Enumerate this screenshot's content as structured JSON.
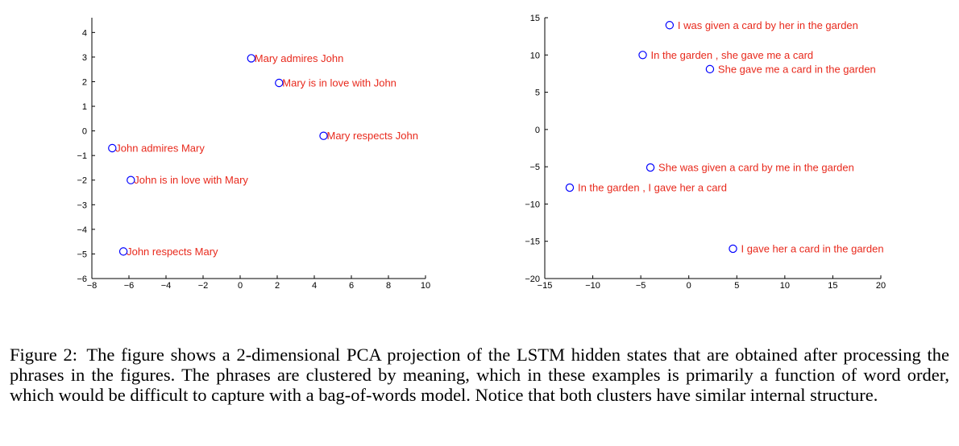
{
  "chart_data": [
    {
      "type": "scatter",
      "title": "",
      "xlabel": "",
      "ylabel": "",
      "xlim": [
        -8,
        10
      ],
      "ylim": [
        -6,
        4.6
      ],
      "xticks": [
        -8,
        -6,
        -4,
        -2,
        0,
        2,
        4,
        6,
        8,
        10
      ],
      "yticks": [
        4,
        3,
        2,
        1,
        0,
        -1,
        -2,
        -3,
        -4,
        -5,
        -6
      ],
      "marker_color": "#0000ff",
      "label_color": "#e8291c",
      "points": [
        {
          "x": 0.6,
          "y": 2.95,
          "label": "Mary admires John"
        },
        {
          "x": 2.1,
          "y": 1.95,
          "label": "Mary is in love with John"
        },
        {
          "x": 4.5,
          "y": -0.2,
          "label": "Mary respects John"
        },
        {
          "x": -6.9,
          "y": -0.7,
          "label": "John admires Mary"
        },
        {
          "x": -5.9,
          "y": -2.0,
          "label": "John is in love with Mary"
        },
        {
          "x": -6.3,
          "y": -4.9,
          "label": "John respects Mary"
        }
      ]
    },
    {
      "type": "scatter",
      "title": "",
      "xlabel": "",
      "ylabel": "",
      "xlim": [
        -15,
        20
      ],
      "ylim": [
        -20,
        15
      ],
      "xticks": [
        -15,
        -10,
        -5,
        0,
        5,
        10,
        15,
        20
      ],
      "yticks": [
        15,
        10,
        5,
        0,
        -5,
        -10,
        -15,
        -20
      ],
      "marker_color": "#0000ff",
      "label_color": "#e8291c",
      "points": [
        {
          "x": -2,
          "y": 14,
          "label": "I was given a card by her in the garden"
        },
        {
          "x": -4.8,
          "y": 10,
          "label": "In the garden , she gave me a card"
        },
        {
          "x": 2.2,
          "y": 8.1,
          "label": "She gave me a card in the garden"
        },
        {
          "x": -4,
          "y": -5.1,
          "label": "She was given a card by me in the garden"
        },
        {
          "x": -12.4,
          "y": -7.8,
          "label": "In the garden , I gave her a card"
        },
        {
          "x": 4.6,
          "y": -16,
          "label": "I gave her a card in the garden"
        }
      ]
    }
  ],
  "caption": {
    "figure_number": "Figure 2:",
    "text": "The figure shows a 2-dimensional PCA projection of the LSTM hidden states that are obtained after processing the phrases in the figures. The phrases are clustered by meaning, which in these examples is primarily a function of word order, which would be difficult to capture with a bag-of-words model. Notice that both clusters have similar internal structure."
  }
}
